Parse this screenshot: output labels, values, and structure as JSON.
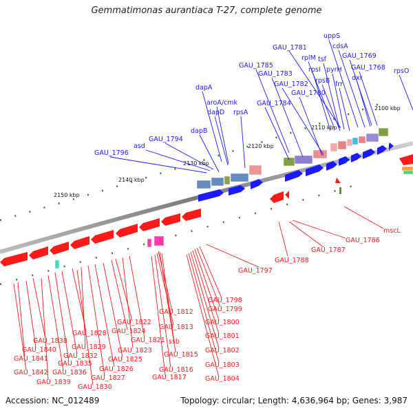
{
  "title": "Gemmatimonas aurantiaca T-27, complete genome",
  "footer": {
    "accession": "Accession: NC_012489",
    "summary": "Topology: circular; Length: 4,636,964 bp; Genes: 3,987"
  },
  "colors": {
    "forward_gene": "#1a1aff",
    "reverse_gene": "#ff1a1a",
    "backbone": "#8a8a8a",
    "tick": "#2e7d1e"
  },
  "scale_labels": [
    "2100 kbp",
    "2110 kbp",
    "2120 kbp",
    "2130 kbp",
    "2140 kbp",
    "2150 kbp"
  ],
  "forward_labels": [
    "uppS",
    "cdsA",
    "GAU_1781",
    "GAU_1769",
    "rplM",
    "tsf",
    "GAU_1785",
    "rpsI",
    "pyrH",
    "GAU_1768",
    "rpsO",
    "GAU_1783",
    "rpsB",
    "dxr",
    "GAU_1782",
    "frr",
    "dapA",
    "GAU_1780",
    "aroA/cmk",
    "GAU_1784",
    "dapD",
    "rpsA",
    "dapB",
    "GAU_1794",
    "asd",
    "GAU_1796"
  ],
  "reverse_labels_right": [
    "mscL",
    "GAU_1786",
    "GAU_1787",
    "GAU_1788",
    "GAU_1797"
  ],
  "reverse_labels_bottom": [
    "GAU_1798",
    "GAU_1799",
    "GAU_1800",
    "GAU_1801",
    "GAU_1802",
    "GAU_1803",
    "GAU_1804",
    "GAU_1812",
    "GAU_1813",
    "GAU_1822",
    "GAU_1824",
    "GAU_1821",
    "ssb",
    "GAU_1823",
    "GAU_1815",
    "GAU_1816",
    "GAU_1817",
    "GAU_1825",
    "GAU_1826",
    "GAU_1827",
    "GAU_1828",
    "GAU_1829",
    "GAU_1830",
    "GAU_1832",
    "GAU_1835",
    "GAU_1836",
    "GAU_1838",
    "GAU_1839",
    "GAU_1840",
    "GAU_1841",
    "GAU_1842"
  ]
}
